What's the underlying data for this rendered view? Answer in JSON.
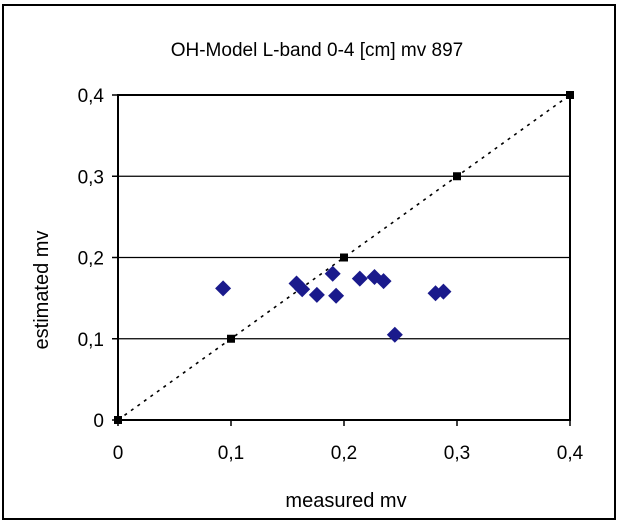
{
  "chart_data": {
    "type": "scatter",
    "title": "OH-Model L-band 0-4 [cm]  mv  897",
    "xlabel": "measured mv",
    "ylabel": "estimated mv",
    "xlim": [
      0,
      0.4
    ],
    "ylim": [
      0,
      0.4
    ],
    "x_ticks": [
      "0",
      "0,1",
      "0,2",
      "0,3",
      "0,4"
    ],
    "y_ticks": [
      "0",
      "0,1",
      "0,2",
      "0,3",
      "0,4"
    ],
    "grid": "horizontal",
    "legend": "none",
    "series": [
      {
        "marker": "diamond",
        "color": "#1a1a8c",
        "points": [
          {
            "x": 0.093,
            "y": 0.162
          },
          {
            "x": 0.158,
            "y": 0.168
          },
          {
            "x": 0.163,
            "y": 0.161
          },
          {
            "x": 0.176,
            "y": 0.154
          },
          {
            "x": 0.19,
            "y": 0.18
          },
          {
            "x": 0.193,
            "y": 0.153
          },
          {
            "x": 0.214,
            "y": 0.174
          },
          {
            "x": 0.227,
            "y": 0.176
          },
          {
            "x": 0.235,
            "y": 0.171
          },
          {
            "x": 0.245,
            "y": 0.105
          },
          {
            "x": 0.281,
            "y": 0.156
          },
          {
            "x": 0.288,
            "y": 0.158
          }
        ]
      },
      {
        "marker": "square",
        "line": "dotted",
        "color": "#000000",
        "points": [
          {
            "x": 0,
            "y": 0
          },
          {
            "x": 0.1,
            "y": 0.1
          },
          {
            "x": 0.2,
            "y": 0.2
          },
          {
            "x": 0.3,
            "y": 0.3
          },
          {
            "x": 0.4,
            "y": 0.4
          }
        ]
      }
    ]
  }
}
